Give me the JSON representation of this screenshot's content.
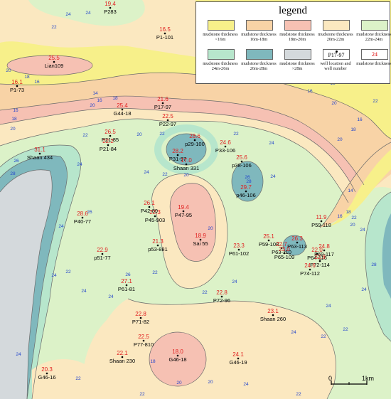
{
  "legend": {
    "title": "legend",
    "items": [
      {
        "label": "mudstone thickness <16m",
        "color": "#f7f08a"
      },
      {
        "label": "mudstone thickness 16m-18m",
        "color": "#f8d3a6"
      },
      {
        "label": "mudstone thickness 18m-20m",
        "color": "#f6c1b3"
      },
      {
        "label": "mudstone thickness 20m-22m",
        "color": "#fbe8c0"
      },
      {
        "label": "mudstone thickness 22m-24m",
        "color": "#dcf2c8"
      },
      {
        "label": "mudstone thickness 24m-26m",
        "color": "#b7e6cc"
      },
      {
        "label": "mudstone thickness 26m-28m",
        "color": "#7fb8bd"
      },
      {
        "label": "mudstone thickness >28m",
        "color": "#d4d9dc"
      },
      {
        "label": "well location and well number",
        "sample": "P17-97"
      },
      {
        "label": "mudstone thickness",
        "sample": "24"
      }
    ]
  },
  "wells": [
    {
      "name": "P283",
      "value": "19.4"
    },
    {
      "name": "P1-101",
      "value": "16.5"
    },
    {
      "name": "Lian109",
      "value": "25.5"
    },
    {
      "name": "P1-73",
      "value": "16.1"
    },
    {
      "name": "G44-18",
      "value": "25.4"
    },
    {
      "name": "P17-97",
      "value": "21.6"
    },
    {
      "name": "P22-97",
      "value": "22.5"
    },
    {
      "name": "P21-85",
      "value": "26.5"
    },
    {
      "name": "P21-84",
      "value": "22.2"
    },
    {
      "name": "Shaan 434",
      "value": "31.1"
    },
    {
      "name": "p29-100",
      "value": "28.6"
    },
    {
      "name": "P31-97",
      "value": "28.2"
    },
    {
      "name": "P33-106",
      "value": "24.6"
    },
    {
      "name": "p38-106",
      "value": "25.6"
    },
    {
      "name": "p46-106",
      "value": "29.7"
    },
    {
      "name": "Shaan 331",
      "value": "17.0"
    },
    {
      "name": "P42-89",
      "value": "26.1"
    },
    {
      "name": "P47-95",
      "value": "19.4"
    },
    {
      "name": "P45-903",
      "value": "22.3"
    },
    {
      "name": "P40-77",
      "value": "28.6"
    },
    {
      "name": "P59-118",
      "value": "11.9"
    },
    {
      "name": "Sai 55",
      "value": "18.9"
    },
    {
      "name": "p53-881",
      "value": "21.3"
    },
    {
      "name": "P61-102",
      "value": "23.3"
    },
    {
      "name": "P59-108",
      "value": "25.1"
    },
    {
      "name": "P63-113",
      "value": "26.3"
    },
    {
      "name": "P63-110",
      "value": "22.7"
    },
    {
      "name": "P65-109",
      "value": "23.0"
    },
    {
      "name": "P64-116",
      "value": "22.0"
    },
    {
      "name": "P69-117",
      "value": "24.8"
    },
    {
      "name": "P72-114",
      "value": "22.8"
    },
    {
      "name": "P74-112",
      "value": "24.6"
    },
    {
      "name": "p51-77",
      "value": "22.9"
    },
    {
      "name": "P61-81",
      "value": "27.1"
    },
    {
      "name": "P72-96",
      "value": "22.8"
    },
    {
      "name": "Shaan 260",
      "value": "23.1"
    },
    {
      "name": "P71-82",
      "value": "22.8"
    },
    {
      "name": "P77-810",
      "value": "22.5"
    },
    {
      "name": "Shaan 230",
      "value": "22.1"
    },
    {
      "name": "G46-18",
      "value": "18.0"
    },
    {
      "name": "G46-19",
      "value": "24.1"
    },
    {
      "name": "G46-16",
      "value": "20.3"
    }
  ],
  "contour_labels": [
    "14",
    "16",
    "18",
    "20",
    "22",
    "24",
    "26",
    "28"
  ],
  "scale": {
    "zero": "0",
    "unit_label": "1km"
  }
}
